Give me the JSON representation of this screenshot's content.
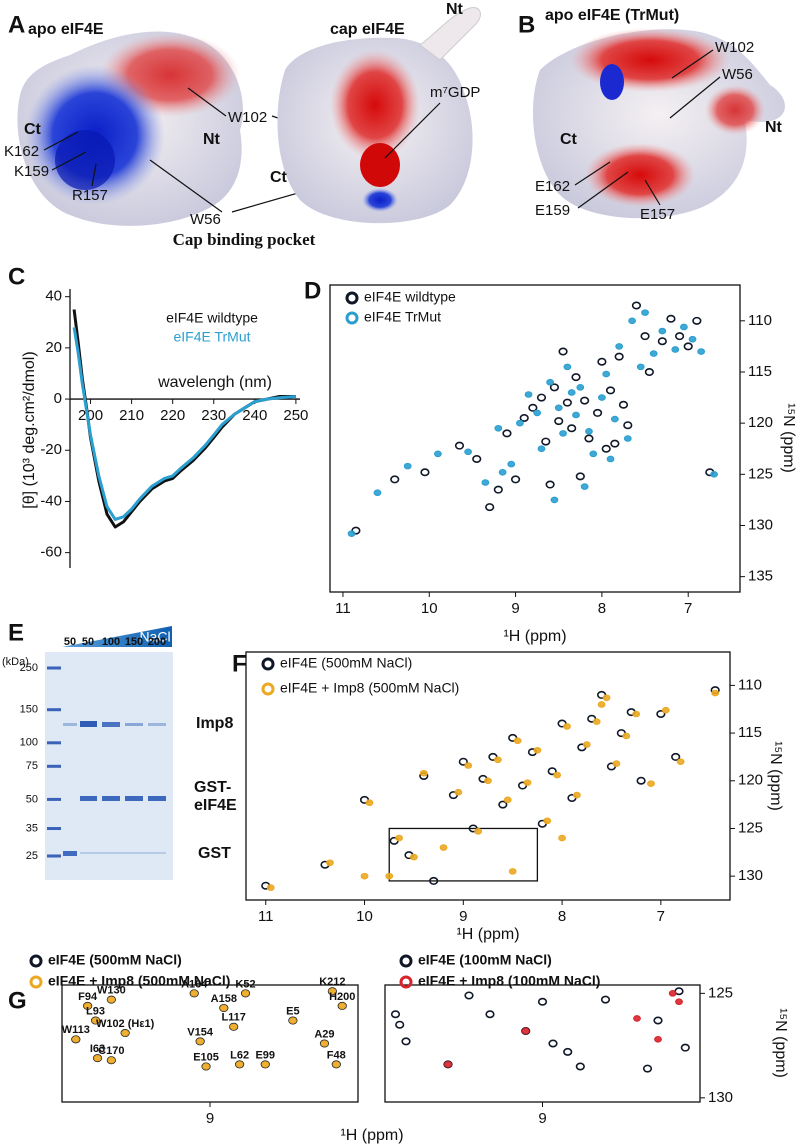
{
  "panel_letters": [
    "A",
    "B",
    "C",
    "D",
    "E",
    "F",
    "G"
  ],
  "structures": {
    "apo": {
      "title": "apo eIF4E",
      "labels": [
        "W102",
        "Ct",
        "Nt",
        "K162",
        "K159",
        "R157",
        "W56"
      ]
    },
    "cap": {
      "title": "cap eIF4E",
      "labels": [
        "Nt",
        "m⁷GDP",
        "Ct"
      ]
    },
    "caption": "Cap binding pocket",
    "trmut": {
      "title": "apo eIF4E (TrMut)",
      "labels": [
        "W102",
        "W56",
        "Nt",
        "Ct",
        "E162",
        "E159",
        "E157"
      ]
    }
  },
  "gel": {
    "unit_label": "(kDa)",
    "ladder_kda": [
      250,
      150,
      100,
      75,
      50,
      35,
      25
    ],
    "lane_labels": [
      "50",
      "50",
      "100",
      "150",
      "200"
    ],
    "gradient_label": "NaCl",
    "band_labels": [
      "Imp8",
      "GST-",
      "eIF4E",
      "GST"
    ]
  },
  "chart_data": [
    {
      "type": "line",
      "x_label": "wavelengh (nm)",
      "y_label": "[θ] (10³ deg.cm²/dmol)",
      "x": [
        196,
        197,
        198,
        199,
        200,
        202,
        204,
        206,
        208,
        210,
        212,
        215,
        218,
        220,
        222,
        225,
        228,
        230,
        232,
        235,
        238,
        240,
        243,
        246,
        250
      ],
      "series": [
        {
          "name": "eIF4E wildtype",
          "color": "#111111",
          "values": [
            35,
            22,
            8,
            -3,
            -15,
            -32,
            -45,
            -50,
            -48,
            -44,
            -40,
            -35,
            -32,
            -31,
            -28,
            -24,
            -19,
            -15,
            -11,
            -6,
            -3,
            -1,
            0,
            1,
            1
          ]
        },
        {
          "name": "eIF4E TrMut",
          "color": "#2b9fd0",
          "values": [
            28,
            18,
            6,
            -4,
            -14,
            -30,
            -42,
            -47,
            -46,
            -43,
            -39,
            -34,
            -31,
            -30,
            -27,
            -23,
            -18,
            -14,
            -10,
            -6,
            -3,
            -1,
            0,
            0.5,
            1
          ]
        }
      ],
      "xlim": [
        195,
        251
      ],
      "ylim": [
        -66,
        43
      ],
      "xticks": [
        200,
        210,
        220,
        230,
        240,
        250
      ],
      "yticks": [
        40,
        20,
        0,
        -20,
        -40,
        -60
      ]
    },
    {
      "type": "scatter",
      "x_label": "¹H (ppm)",
      "y_label": "¹⁵N (ppm)",
      "series": [
        {
          "name": "eIF4E wildtype",
          "color": "#101828",
          "x": [
            10.85,
            10.4,
            10.05,
            9.65,
            9.45,
            9.3,
            9.1,
            9.0,
            8.9,
            8.8,
            8.7,
            8.65,
            8.55,
            8.5,
            8.4,
            8.35,
            8.3,
            8.2,
            8.15,
            8.05,
            8.0,
            7.95,
            7.9,
            7.8,
            7.75,
            7.7,
            7.6,
            7.5,
            7.45,
            7.3,
            7.2,
            7.1,
            7.0,
            6.9,
            6.75,
            8.6,
            8.25,
            7.85,
            9.2,
            8.45
          ],
          "values": [
            130.5,
            125.5,
            124.8,
            122.2,
            123.5,
            128.2,
            121.0,
            125.5,
            119.5,
            118.5,
            117.5,
            121.8,
            116.5,
            119.8,
            118.0,
            120.5,
            115.5,
            117.8,
            121.5,
            119.0,
            114.0,
            122.5,
            116.8,
            113.5,
            118.2,
            120.2,
            108.5,
            111.5,
            115.0,
            112.0,
            109.8,
            111.5,
            112.5,
            110.0,
            124.8,
            126.0,
            125.2,
            122.0,
            126.5,
            113.0
          ]
        },
        {
          "name": "eIF4E TrMut",
          "color": "#2b9fd0",
          "x": [
            10.9,
            10.6,
            10.25,
            9.9,
            9.55,
            9.35,
            9.2,
            9.05,
            8.95,
            8.85,
            8.75,
            8.7,
            8.6,
            8.5,
            8.45,
            8.4,
            8.3,
            8.25,
            8.15,
            8.1,
            8.0,
            7.95,
            7.85,
            7.8,
            7.7,
            7.65,
            7.55,
            7.5,
            7.4,
            7.3,
            7.15,
            7.05,
            6.95,
            6.85,
            6.7,
            8.55,
            8.2,
            7.9,
            9.15,
            8.35
          ],
          "values": [
            130.8,
            126.8,
            124.2,
            123.0,
            122.8,
            125.8,
            120.5,
            124.0,
            120.0,
            117.2,
            119.0,
            122.5,
            116.0,
            118.5,
            121.0,
            114.5,
            119.2,
            116.5,
            120.8,
            123.0,
            117.5,
            115.2,
            119.6,
            112.5,
            121.5,
            110.0,
            114.5,
            109.2,
            113.2,
            111.0,
            112.8,
            110.6,
            111.8,
            113.0,
            125.0,
            127.5,
            126.2,
            123.5,
            124.8,
            117.0
          ]
        }
      ],
      "xlim": [
        11.15,
        6.4
      ],
      "ylim": [
        136.5,
        106.5
      ],
      "xticks": [
        11,
        10,
        9,
        8,
        7
      ],
      "yticks": [
        110,
        115,
        120,
        125,
        130,
        135
      ]
    },
    {
      "type": "scatter",
      "x_label": "¹H (ppm)",
      "y_label": "¹⁵N (ppm)",
      "series": [
        {
          "name": "eIF4E  (500mM NaCl)",
          "color": "#101828",
          "x": [
            11.0,
            10.4,
            10.0,
            9.7,
            9.55,
            9.4,
            9.3,
            9.1,
            9.0,
            8.9,
            8.8,
            8.7,
            8.6,
            8.5,
            8.4,
            8.3,
            8.2,
            8.1,
            8.0,
            7.9,
            7.8,
            7.7,
            7.6,
            7.5,
            7.4,
            7.3,
            7.2,
            7.0,
            6.85,
            6.45
          ],
          "values": [
            131.0,
            128.8,
            122.0,
            126.3,
            127.8,
            119.5,
            130.5,
            121.5,
            118.0,
            125.0,
            119.8,
            117.5,
            122.5,
            115.5,
            120.5,
            117.0,
            124.5,
            119.0,
            114.0,
            121.8,
            116.5,
            113.5,
            111.0,
            118.5,
            115.0,
            112.8,
            120.0,
            113.0,
            117.5,
            110.5
          ]
        },
        {
          "name": "eIF4E + Imp8  (500mM NaCl)",
          "color": "#eba821",
          "x": [
            10.95,
            10.35,
            9.95,
            9.65,
            9.5,
            9.4,
            9.2,
            9.05,
            8.95,
            8.85,
            8.75,
            8.65,
            8.55,
            8.45,
            8.35,
            8.25,
            8.15,
            8.05,
            7.95,
            7.85,
            7.75,
            7.65,
            7.55,
            7.45,
            7.35,
            7.25,
            7.1,
            6.95,
            6.8,
            6.45,
            9.75,
            8.5,
            8.0,
            7.6,
            10.0
          ],
          "values": [
            131.2,
            128.6,
            122.3,
            126.0,
            128.0,
            119.2,
            127.0,
            121.2,
            118.4,
            125.3,
            120.0,
            117.8,
            122.0,
            115.8,
            120.2,
            116.8,
            124.2,
            119.4,
            114.3,
            121.5,
            116.2,
            113.8,
            111.3,
            118.2,
            115.3,
            113.0,
            120.3,
            112.6,
            118.0,
            110.8,
            130.0,
            129.5,
            126.0,
            112.0,
            130.0
          ]
        }
      ],
      "xlim": [
        11.2,
        6.3
      ],
      "ylim": [
        132.5,
        106.5
      ],
      "xticks": [
        11,
        10,
        9,
        8,
        7
      ],
      "yticks": [
        110,
        115,
        120,
        125,
        130
      ],
      "highlight_box": {
        "xlim": [
          9.75,
          8.25
        ],
        "ylim": [
          130.5,
          125
        ]
      }
    },
    {
      "type": "scatter",
      "x_label": "¹H (ppm)",
      "series": [
        {
          "name": "eIF4E  (500mM NaCl)",
          "color": "#101828",
          "x": [
            9.62,
            9.5,
            9.58,
            9.43,
            9.68,
            9.57,
            9.5,
            9.08,
            8.93,
            8.82,
            8.88,
            9.05,
            9.02,
            8.85,
            8.72,
            8.38,
            8.33,
            8.58,
            8.42,
            8.36
          ],
          "values": [
            125.6,
            125.3,
            126.3,
            126.9,
            127.2,
            128.1,
            128.2,
            125.0,
            125.7,
            125.0,
            126.6,
            127.3,
            128.5,
            128.4,
            128.4,
            124.9,
            125.6,
            126.3,
            127.4,
            128.4
          ]
        },
        {
          "name": "eIF4E + Imp8  (500mM NaCl)",
          "color": "#eba821",
          "x": [
            9.62,
            9.5,
            9.58,
            9.43,
            9.68,
            9.57,
            9.5,
            9.08,
            8.93,
            8.82,
            8.88,
            9.05,
            9.02,
            8.85,
            8.72,
            8.38,
            8.33,
            8.58,
            8.42,
            8.36
          ],
          "values": [
            125.6,
            125.3,
            126.3,
            126.9,
            127.2,
            128.1,
            128.2,
            125.0,
            125.7,
            125.0,
            126.6,
            127.3,
            128.5,
            128.4,
            128.4,
            124.9,
            125.6,
            126.3,
            127.4,
            128.4
          ]
        }
      ],
      "peak_labels": [
        "F94",
        "W130",
        "L93",
        "W102 (Hε1)",
        "W113",
        "I63",
        "C170",
        "A164",
        "A158",
        "K52",
        "L117",
        "V154",
        "E105",
        "L62",
        "E99",
        "K212",
        "H200",
        "E5",
        "A29",
        "F48"
      ],
      "xlim": [
        9.75,
        8.25
      ],
      "ylim": [
        130.2,
        124.6
      ],
      "xticks": [
        9
      ]
    },
    {
      "type": "scatter",
      "y_label": "¹⁵N (ppm)",
      "series": [
        {
          "name": "eIF4E  (100mM NaCl)",
          "color": "#101828",
          "x": [
            9.7,
            9.68,
            9.65,
            9.45,
            9.25,
            9.08,
            9.0,
            8.95,
            8.88,
            8.82,
            8.7,
            8.5,
            8.45,
            8.35,
            8.32,
            9.35
          ],
          "values": [
            126.0,
            126.5,
            127.3,
            128.4,
            126.0,
            126.8,
            125.4,
            127.4,
            127.8,
            128.5,
            125.3,
            128.6,
            126.3,
            124.9,
            127.6,
            125.1
          ]
        },
        {
          "name": "eIF4E + Imp8  (100mM NaCl)",
          "color": "#d8232a",
          "x": [
            8.55,
            8.45,
            8.38,
            8.35,
            9.45,
            9.08
          ],
          "values": [
            126.2,
            127.2,
            125.0,
            125.4,
            128.4,
            126.8
          ]
        }
      ],
      "xlim": [
        9.75,
        8.25
      ],
      "ylim": [
        130.2,
        124.6
      ],
      "xticks": [
        9
      ],
      "yticks": [
        125,
        130
      ]
    }
  ]
}
